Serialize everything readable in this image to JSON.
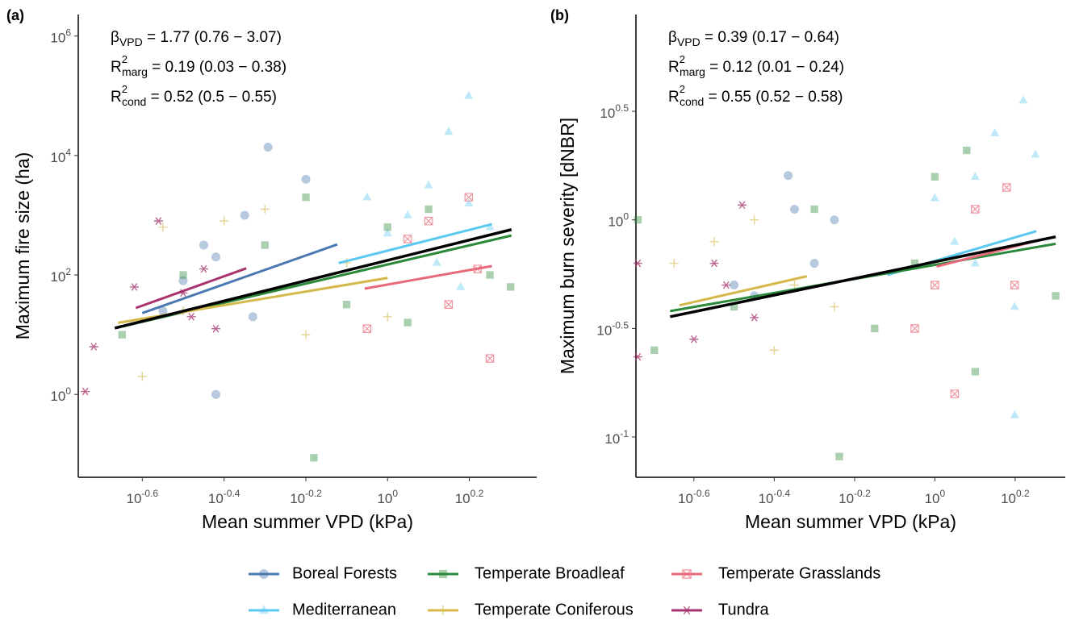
{
  "chart_data": [
    {
      "type": "scatter",
      "panel_label": "(a)",
      "x_label": "Mean summer VPD (kPa)",
      "y_label": "Maximum fire size (ha)",
      "log_x": true,
      "log_y": true,
      "xlim": [
        0.175,
        2.317
      ],
      "ylim": [
        0.041,
        2290000
      ],
      "xticks": [
        {
          "value": 0.251,
          "label": "10",
          "exponent": "-0.6"
        },
        {
          "value": 0.398,
          "label": "10",
          "exponent": "-0.4"
        },
        {
          "value": 0.631,
          "label": "10",
          "exponent": "-0.2"
        },
        {
          "value": 1,
          "label": "10",
          "exponent": "0"
        },
        {
          "value": 1.585,
          "label": "10",
          "exponent": "0.2"
        }
      ],
      "yticks": [
        {
          "value": 1,
          "label": "10",
          "exponent": "0"
        },
        {
          "value": 100,
          "label": "10",
          "exponent": "2"
        },
        {
          "value": 10000,
          "label": "10",
          "exponent": "4"
        },
        {
          "value": 1000000,
          "label": "10",
          "exponent": "6"
        }
      ],
      "annotations": [
        {
          "symbol": "β",
          "subscript": "VPD",
          "text": " = 1.77  (0.76 − 3.07)"
        },
        {
          "symbol": "R",
          "superscript": "2",
          "subscript": "marg",
          "text": " = 0.19  (0.03 − 0.38)"
        },
        {
          "symbol": "R",
          "superscript": "2",
          "subscript": "cond",
          "text": " = 0.52  (0.5 − 0.55)"
        }
      ],
      "overall_fit": {
        "color": "#000000",
        "x": [
          0.215,
          2.01
        ],
        "y": [
          12.9,
          575
        ]
      },
      "series": [
        {
          "name": "Boreal Forests",
          "color": "#4a78b0",
          "marker": "circle",
          "x": [
            0.51,
            0.447,
            0.38,
            0.316,
            0.355,
            0.38,
            0.631,
            0.468,
            0.282
          ],
          "values": [
            13800,
            1000,
            200,
            80,
            316,
            1,
            4000,
            20,
            25
          ],
          "fit": {
            "x": [
              0.251,
              0.753
            ],
            "y": [
              23,
              324
            ]
          }
        },
        {
          "name": "Mediterranean",
          "color": "#5bc8ef",
          "marker": "triangle",
          "x": [
            1.58,
            1.41,
            1.26,
            1.12,
            1,
            1.58,
            1.78,
            1.32,
            0.891,
            1.51
          ],
          "values": [
            100000,
            25000,
            3160,
            1000,
            500,
            1580,
            630,
            160,
            2000,
            63
          ],
          "fit": {
            "x": [
              0.759,
              1.8
            ],
            "y": [
              158,
              708
            ]
          }
        },
        {
          "name": "Temperate Broadleaf",
          "color": "#2a8a3a",
          "marker": "square",
          "x": [
            0.224,
            0.316,
            0.501,
            0.631,
            0.794,
            1,
            1.12,
            1.26,
            1.78,
            2.0,
            0.66
          ],
          "values": [
            10,
            100,
            316,
            2000,
            32,
            630,
            16,
            1260,
            100,
            63,
            0.087
          ],
          "fit": {
            "x": [
              0.219,
              2.01
            ],
            "y": [
              13.2,
              457
            ]
          }
        },
        {
          "name": "Temperate Coniferous",
          "color": "#d4b84a",
          "marker": "plus",
          "x": [
            0.282,
            0.251,
            0.316,
            0.398,
            0.501,
            0.631,
            0.794,
            1
          ],
          "values": [
            630,
            2,
            25,
            800,
            1260,
            10,
            160,
            20
          ],
          "fit": {
            "x": [
              0.219,
              1
            ],
            "y": [
              15.8,
              89
            ]
          }
        },
        {
          "name": "Temperate Grasslands",
          "color": "#e8697a",
          "marker": "boxx",
          "x": [
            1.58,
            1.26,
            0.891,
            1.41,
            1.78,
            1.12,
            1.66
          ],
          "values": [
            2000,
            800,
            12.6,
            32,
            4,
            400,
            126
          ],
          "fit": {
            "x": [
              0.879,
              1.8
            ],
            "y": [
              59,
              141
            ]
          }
        },
        {
          "name": "Tundra",
          "color": "#a8336e",
          "marker": "asterisk",
          "x": [
            0.182,
            0.275,
            0.316,
            0.331,
            0.24,
            0.355,
            0.191,
            0.38
          ],
          "values": [
            1.12,
            800,
            50,
            20,
            63,
            126,
            6.3,
            12.6
          ],
          "fit": {
            "x": [
              0.242,
              0.451
            ],
            "y": [
              28,
              129
            ]
          }
        }
      ]
    },
    {
      "type": "scatter",
      "panel_label": "(b)",
      "x_label": "Mean summer VPD (kPa)",
      "y_label": "Maximum burn severity [dNBR]",
      "log_x": true,
      "log_y": true,
      "xlim": [
        0.18,
        2.113
      ],
      "ylim": [
        0.0652,
        8.83
      ],
      "xticks": [
        {
          "value": 0.251,
          "label": "10",
          "exponent": "-0.6"
        },
        {
          "value": 0.398,
          "label": "10",
          "exponent": "-0.4"
        },
        {
          "value": 0.631,
          "label": "10",
          "exponent": "-0.2"
        },
        {
          "value": 1,
          "label": "10",
          "exponent": "0"
        },
        {
          "value": 1.585,
          "label": "10",
          "exponent": "0.2"
        }
      ],
      "yticks": [
        {
          "value": 0.1,
          "label": "10",
          "exponent": "-1"
        },
        {
          "value": 0.316,
          "label": "10",
          "exponent": "-0.5"
        },
        {
          "value": 1,
          "label": "10",
          "exponent": "0"
        },
        {
          "value": 3.162,
          "label": "10",
          "exponent": "0.5"
        }
      ],
      "annotations": [
        {
          "symbol": "β",
          "subscript": "VPD",
          "text": " = 0.39  (0.17 − 0.64)"
        },
        {
          "symbol": "R",
          "superscript": "2",
          "subscript": "marg",
          "text": " = 0.12  (0.01 − 0.24)"
        },
        {
          "symbol": "R",
          "superscript": "2",
          "subscript": "cond",
          "text": " = 0.55  (0.52 − 0.58)"
        }
      ],
      "overall_fit": {
        "color": "#000000",
        "x": [
          0.219,
          2.0
        ],
        "y": [
          0.358,
          0.836
        ]
      },
      "series": [
        {
          "color": "#4a78b0",
          "marker": "circle",
          "x": [
            0.431,
            0.316,
            0.447,
            0.562,
            0.355,
            0.501
          ],
          "values": [
            1.6,
            0.501,
            1.12,
            1,
            0.447,
            0.631
          ]
        },
        {
          "color": "#5bc8ef",
          "marker": "triangle",
          "x": [
            1.66,
            1.41,
            1.26,
            1.12,
            1.58,
            1.78,
            1,
            1.58,
            1.26
          ],
          "values": [
            3.55,
            2.51,
            1.58,
            0.794,
            0.398,
            2.0,
            1.26,
            0.126,
            0.631
          ],
          "fit": {
            "x": [
              0.762,
              1.79
            ],
            "y": [
              0.558,
              0.887
            ]
          }
        },
        {
          "color": "#2a8a3a",
          "marker": "square",
          "x": [
            0.182,
            0.2,
            0.316,
            0.501,
            0.708,
            0.578,
            1,
            1.26,
            0.891,
            2.0,
            1.2
          ],
          "values": [
            1,
            0.251,
            0.398,
            1.12,
            0.316,
            0.0813,
            1.58,
            0.2,
            0.631,
            0.447,
            2.09
          ],
          "fit": {
            "x": [
              0.219,
              2.0
            ],
            "y": [
              0.38,
              0.776
            ]
          }
        },
        {
          "color": "#d4b84a",
          "marker": "plus",
          "x": [
            0.224,
            0.282,
            0.355,
            0.398,
            0.447,
            0.562
          ],
          "values": [
            0.631,
            0.794,
            1,
            0.251,
            0.501,
            0.398
          ],
          "fit": {
            "x": [
              0.231,
              0.48
            ],
            "y": [
              0.404,
              0.55
            ]
          }
        },
        {
          "color": "#e8697a",
          "marker": "boxx",
          "x": [
            1.26,
            1.51,
            1,
            1.12,
            1.58,
            0.891
          ],
          "values": [
            1.12,
            1.41,
            0.501,
            0.158,
            0.501,
            0.316
          ],
          "fit": {
            "x": [
              1.01,
              1.79
            ],
            "y": [
              0.61,
              0.8
            ]
          }
        },
        {
          "color": "#a8336e",
          "marker": "asterisk",
          "x": [
            0.182,
            0.182,
            0.251,
            0.282,
            0.331,
            0.302,
            0.355
          ],
          "values": [
            0.631,
            0.234,
            0.282,
            0.631,
            1.17,
            0.501,
            0.355
          ]
        }
      ]
    }
  ]
}
